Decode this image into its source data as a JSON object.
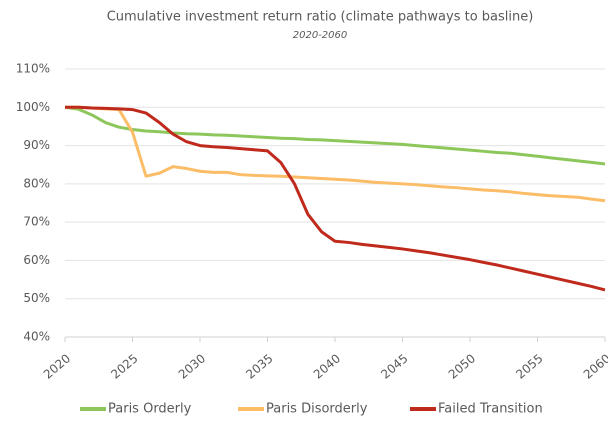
{
  "chart_data": {
    "type": "line",
    "title": "Cumulative investment return ratio (climate pathways  to basline)",
    "subtitle": "2020-2060",
    "x": [
      2020,
      2021,
      2022,
      2023,
      2024,
      2025,
      2026,
      2027,
      2028,
      2029,
      2030,
      2031,
      2032,
      2033,
      2034,
      2035,
      2036,
      2037,
      2038,
      2039,
      2040,
      2041,
      2042,
      2043,
      2044,
      2045,
      2046,
      2047,
      2048,
      2049,
      2050,
      2051,
      2052,
      2053,
      2054,
      2055,
      2056,
      2057,
      2058,
      2059,
      2060
    ],
    "xlim": [
      2020,
      2060
    ],
    "xticks": [
      2020,
      2025,
      2030,
      2035,
      2040,
      2045,
      2050,
      2055,
      2060
    ],
    "ylim": [
      40,
      110
    ],
    "yticks": [
      {
        "value": 40,
        "label": "40%"
      },
      {
        "value": 50,
        "label": "50%"
      },
      {
        "value": 60,
        "label": "60%"
      },
      {
        "value": 70,
        "label": "70%"
      },
      {
        "value": 80,
        "label": "80%"
      },
      {
        "value": 90,
        "label": "90%"
      },
      {
        "value": 100,
        "label": "100%"
      },
      {
        "value": 110,
        "label": "110%"
      }
    ],
    "grid": true,
    "legend": "bottom",
    "series": [
      {
        "name": "Paris Orderly",
        "color": "#8dc65a",
        "values": [
          100,
          99.5,
          98,
          96,
          94.8,
          94.2,
          93.8,
          93.6,
          93.3,
          93.1,
          93,
          92.8,
          92.7,
          92.5,
          92.3,
          92.1,
          91.9,
          91.8,
          91.6,
          91.5,
          91.3,
          91.1,
          90.9,
          90.7,
          90.5,
          90.3,
          90,
          89.7,
          89.4,
          89.1,
          88.8,
          88.5,
          88.2,
          88,
          87.6,
          87.2,
          86.8,
          86.4,
          86,
          85.6,
          85.2
        ]
      },
      {
        "name": "Paris Disorderly",
        "color": "#fbbd68",
        "values": [
          100,
          100,
          99.8,
          99.6,
          99.4,
          93.5,
          82,
          82.8,
          84.5,
          84,
          83.3,
          83,
          83,
          82.4,
          82.2,
          82.1,
          82,
          81.8,
          81.6,
          81.4,
          81.2,
          81,
          80.7,
          80.4,
          80.2,
          80,
          79.8,
          79.5,
          79.2,
          79,
          78.7,
          78.4,
          78.2,
          77.9,
          77.5,
          77.2,
          76.9,
          76.7,
          76.5,
          76,
          75.6
        ]
      },
      {
        "name": "Failed Transition",
        "color": "#bf2a1c",
        "values": [
          100,
          100,
          99.8,
          99.7,
          99.6,
          99.4,
          98.5,
          96,
          93,
          91,
          90,
          89.7,
          89.5,
          89.2,
          88.9,
          88.6,
          85.5,
          80,
          72,
          67.5,
          65,
          64.7,
          64.2,
          63.8,
          63.4,
          63,
          62.5,
          62,
          61.4,
          60.8,
          60.2,
          59.5,
          58.8,
          58,
          57.2,
          56.4,
          55.6,
          54.8,
          54,
          53.2,
          52.3
        ]
      }
    ]
  }
}
